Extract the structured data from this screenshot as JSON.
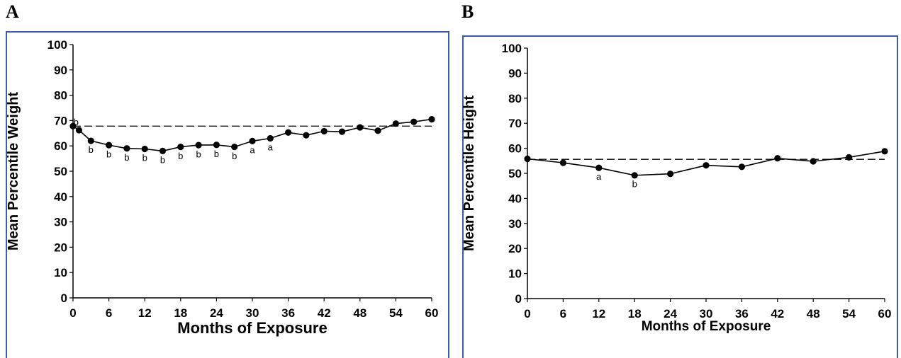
{
  "panels": [
    {
      "letter": "A",
      "chart_data": {
        "type": "line",
        "title": "",
        "xlabel": "Months of Exposure",
        "ylabel": "Mean Percentile Weight",
        "xlim": [
          0,
          60
        ],
        "ylim": [
          0,
          100
        ],
        "xticks": [
          0,
          6,
          12,
          18,
          24,
          30,
          36,
          42,
          48,
          54,
          60
        ],
        "yticks": [
          0,
          10,
          20,
          30,
          40,
          50,
          60,
          70,
          80,
          90,
          100
        ],
        "grid": false,
        "reference_line": 67.8,
        "series": [
          {
            "x": [
              0,
              1,
              3,
              6,
              9,
              12,
              15,
              18,
              21,
              24,
              27,
              30,
              33,
              36,
              39,
              42,
              45,
              48,
              51,
              54,
              57,
              60
            ],
            "y": [
              67.8,
              66.2,
              62.0,
              60.3,
              59.0,
              58.8,
              58.0,
              59.6,
              60.3,
              60.4,
              59.6,
              61.9,
              63.0,
              65.3,
              64.2,
              65.8,
              65.6,
              67.3,
              66.0,
              68.8,
              69.5,
              70.5
            ]
          }
        ],
        "annotations": [
          {
            "x": 0.5,
            "y": 68.2,
            "text": "b"
          },
          {
            "x": 3,
            "y": 57.2,
            "text": "b"
          },
          {
            "x": 6,
            "y": 55.5,
            "text": "b"
          },
          {
            "x": 9,
            "y": 54.2,
            "text": "b"
          },
          {
            "x": 12,
            "y": 54.0,
            "text": "b"
          },
          {
            "x": 15,
            "y": 53.2,
            "text": "b"
          },
          {
            "x": 18,
            "y": 54.8,
            "text": "b"
          },
          {
            "x": 21,
            "y": 55.5,
            "text": "b"
          },
          {
            "x": 24,
            "y": 55.6,
            "text": "b"
          },
          {
            "x": 27,
            "y": 54.8,
            "text": "b"
          },
          {
            "x": 30,
            "y": 57.1,
            "text": "a"
          },
          {
            "x": 33,
            "y": 58.2,
            "text": "a"
          }
        ]
      }
    },
    {
      "letter": "B",
      "chart_data": {
        "type": "line",
        "title": "",
        "xlabel": "Months of Exposure",
        "ylabel": "Mean Percentile Height",
        "xlim": [
          0,
          60
        ],
        "ylim": [
          0,
          100
        ],
        "xticks": [
          0,
          6,
          12,
          18,
          24,
          30,
          36,
          42,
          48,
          54,
          60
        ],
        "yticks": [
          0,
          10,
          20,
          30,
          40,
          50,
          60,
          70,
          80,
          90,
          100
        ],
        "grid": false,
        "reference_line": 55.6,
        "series": [
          {
            "x": [
              0,
              6,
              12,
              18,
              24,
              30,
              36,
              42,
              48,
              54,
              60
            ],
            "y": [
              55.8,
              54.2,
              52.2,
              49.2,
              49.8,
              53.2,
              52.6,
              56.0,
              54.8,
              56.4,
              58.8
            ]
          }
        ],
        "annotations": [
          {
            "x": 12,
            "y": 47.5,
            "text": "a"
          },
          {
            "x": 18,
            "y": 44.5,
            "text": "b"
          }
        ]
      }
    }
  ]
}
